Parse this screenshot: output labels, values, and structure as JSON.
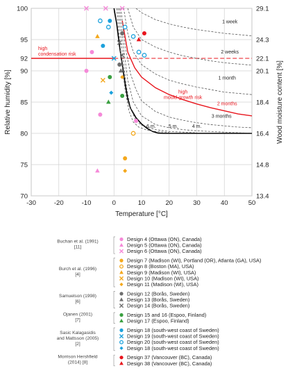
{
  "chart_data": {
    "type": "scatter",
    "xlabel": "Temperature [°C]",
    "ylabel": "Relative humidity [%]",
    "y2label": "Wood moisture content [%]",
    "xlim": [
      -30,
      50
    ],
    "ylim": [
      70,
      100
    ],
    "xticks": [
      -30,
      -20,
      -10,
      0,
      10,
      20,
      30,
      40,
      50
    ],
    "yticks": [
      70,
      75,
      80,
      85,
      90,
      95,
      100
    ],
    "y2ticks": [
      {
        "rh": 70,
        "label": "13.4"
      },
      {
        "rh": 75,
        "label": "14.8"
      },
      {
        "rh": 80,
        "label": "16.4"
      },
      {
        "rh": 85,
        "label": "18.4"
      },
      {
        "rh": 90,
        "label": "20.1"
      },
      {
        "rh": 92,
        "label": "22.1"
      },
      {
        "rh": 95,
        "label": "24.3"
      },
      {
        "rh": 100,
        "label": "29.1"
      }
    ],
    "y92_label": "92",
    "y2_92_label": "22.1",
    "condensation_line_rh": 92,
    "condensation_label": [
      "high",
      "condensation risk"
    ],
    "mould_label": [
      "high",
      "mould-growth risk"
    ],
    "colors": {
      "red": "#e8141c",
      "pink": "#f589d8",
      "orange": "#f4a81c",
      "gray": "#6e6e6e",
      "green": "#3aa040",
      "blue": "#1ba1dc"
    },
    "curves": [
      {
        "name": "2 months",
        "style": "red",
        "label": "2 months",
        "x": [
          3.0,
          5.0,
          7.5,
          10.0,
          15.0,
          20.0,
          25.0,
          30.0,
          35.0,
          40.0,
          45.0,
          50.0
        ],
        "y": [
          98.0,
          93.0,
          90.5,
          89.0,
          87.3,
          86.2,
          85.4,
          84.7,
          84.1,
          83.6,
          83.1,
          82.8
        ]
      },
      {
        "name": "limit",
        "style": "black",
        "x": [
          0.0,
          1.0,
          2.0,
          3.0,
          4.0,
          5.0,
          6.0,
          8.0,
          10.0,
          12.0,
          14.0,
          16.0,
          18.0,
          20.0,
          25.0,
          30.0,
          35.0,
          40.0,
          45.0,
          50.0
        ],
        "y": [
          100.0,
          97.5,
          94.0,
          91.0,
          88.0,
          85.5,
          84.0,
          82.5,
          81.5,
          80.8,
          80.3,
          80.05,
          80.0,
          80.0,
          80.0,
          80.0,
          80.0,
          80.0,
          80.0,
          80.0
        ]
      },
      {
        "name": "1 week",
        "style": "dashed",
        "label": "1 week",
        "x": [
          8.0,
          10.0,
          15.0,
          20.0,
          25.0,
          30.0,
          35.0,
          40.0,
          45.0,
          50.0
        ],
        "y": [
          100.0,
          99.3,
          98.2,
          97.5,
          97.0,
          96.6,
          96.3,
          96.0,
          95.8,
          95.6
        ]
      },
      {
        "name": "2 weeks",
        "style": "dashed",
        "label": "2 weeks",
        "x": [
          5.0,
          7.0,
          10.0,
          15.0,
          20.0,
          25.0,
          30.0,
          35.0,
          40.0,
          45.0,
          50.0
        ],
        "y": [
          100.0,
          97.0,
          95.0,
          93.8,
          93.0,
          92.4,
          92.0,
          91.6,
          91.3,
          91.1,
          90.9
        ]
      },
      {
        "name": "1 month",
        "style": "dashed",
        "label": "1 month",
        "x": [
          3.5,
          5.0,
          7.0,
          10.0,
          15.0,
          20.0,
          25.0,
          30.0,
          35.0,
          40.0,
          45.0,
          50.0
        ],
        "y": [
          100.0,
          96.0,
          93.0,
          91.0,
          89.5,
          88.5,
          87.9,
          87.4,
          87.0,
          86.6,
          86.4,
          86.2
        ]
      },
      {
        "name": "3 months",
        "style": "dashed",
        "label": "3 months",
        "x": [
          2.5,
          4.0,
          6.0,
          8.0,
          10.0,
          15.0,
          20.0,
          25.0,
          30.0,
          35.0,
          40.0,
          45.0,
          50.0
        ],
        "y": [
          100.0,
          94.0,
          89.5,
          87.0,
          85.2,
          83.5,
          82.6,
          82.1,
          81.7,
          81.4,
          81.2,
          81.0,
          80.9
        ]
      },
      {
        "name": "4 months",
        "style": "dashed",
        "label": "4 m.",
        "x": [
          2.0,
          3.5,
          5.0,
          7.0,
          10.0,
          15.0,
          20.0,
          25.0,
          30.0,
          35.0,
          40.0,
          45.0,
          50.0
        ],
        "y": [
          100.0,
          93.5,
          88.5,
          85.0,
          82.8,
          81.4,
          80.9,
          80.6,
          80.4,
          80.3,
          80.2,
          80.1,
          80.05
        ]
      },
      {
        "name": "5 months",
        "style": "dashed",
        "label": "5 m.",
        "x": [
          1.5,
          3.0,
          4.5,
          6.0,
          8.0,
          10.0,
          15.0,
          20.0,
          25.0,
          30.0
        ],
        "y": [
          100.0,
          93.0,
          87.5,
          84.0,
          82.0,
          81.3,
          80.6,
          80.3,
          80.2,
          80.1
        ]
      },
      {
        "name": "6 months",
        "style": "dashed",
        "label": "6 m.",
        "x": [
          1.0,
          2.5,
          4.0,
          5.5,
          7.0,
          9.0,
          12.0,
          15.0,
          20.0
        ],
        "y": [
          100.0,
          92.5,
          87.0,
          83.5,
          81.8,
          81.0,
          80.5,
          80.3,
          80.15
        ]
      }
    ],
    "series": [
      {
        "name": "Design 4 (Ottawa (ON), Canada)",
        "marker": "circle",
        "color": "#f589d8",
        "x": [
          -8.0,
          -10.0,
          -5.0,
          8.0
        ],
        "y": [
          93.0,
          90.0,
          83.0,
          82.0
        ]
      },
      {
        "name": "Design 5 (Ottawa (ON), Canada)",
        "marker": "triangle",
        "color": "#f589d8",
        "x": [
          -6.0
        ],
        "y": [
          74.0
        ]
      },
      {
        "name": "Design 6 (Ottawa (ON), Canada)",
        "marker": "cross",
        "color": "#f589d8",
        "x": [
          -10.0,
          -3.0,
          3.0
        ],
        "y": [
          100.0,
          100.0,
          100.0
        ]
      },
      {
        "name": "Design 7 (Madison (WI), Portland (OR), Atlanta (GA), USA)",
        "marker": "circle",
        "color": "#f4a81c",
        "x": [
          4.0
        ],
        "y": [
          76.0
        ]
      },
      {
        "name": "Design 8 (Boston (MA), USA)",
        "marker": "open-circle",
        "color": "#f4a81c",
        "x": [
          7.0
        ],
        "y": [
          80.0
        ]
      },
      {
        "name": "Design 9 (Madison (WI), USA)",
        "marker": "triangle",
        "color": "#f4a81c",
        "x": [
          -6.0
        ],
        "y": [
          95.5
        ]
      },
      {
        "name": "Design 10 (Madison (WI), USA)",
        "marker": "cross",
        "color": "#f4a81c",
        "x": [
          -4.0
        ],
        "y": [
          88.5
        ]
      },
      {
        "name": "Design 11 (Madison (WI), USA)",
        "marker": "diamond",
        "color": "#f4a81c",
        "x": [
          4.0,
          3.0
        ],
        "y": [
          74.0,
          89.0
        ]
      },
      {
        "name": "Design 12 (Borås, Sweden)",
        "marker": "circle",
        "color": "#6e6e6e",
        "x": [
          2.0,
          3.0
        ],
        "y": [
          91.0,
          96.0
        ]
      },
      {
        "name": "Design 13 (Borås, Sweden)",
        "marker": "triangle",
        "color": "#6e6e6e",
        "x": [
          2.5
        ],
        "y": [
          90.0
        ]
      },
      {
        "name": "Design 14 (Borås, Sweden)",
        "marker": "cross",
        "color": "#6e6e6e",
        "x": [
          3.0,
          2.0
        ],
        "y": [
          92.5,
          94.5
        ]
      },
      {
        "name": "Design 15 and 16 (Espoo, Finland)",
        "marker": "circle",
        "color": "#3aa040",
        "x": [
          -1.5,
          3.0
        ],
        "y": [
          89.0,
          86.0
        ]
      },
      {
        "name": "Design 17 (Espoo, Finland)",
        "marker": "triangle",
        "color": "#3aa040",
        "x": [
          -2.0
        ],
        "y": [
          85.0
        ]
      },
      {
        "name": "Design 18 (south-west coast of Sweden)",
        "marker": "circle",
        "color": "#1ba1dc",
        "x": [
          -4.0,
          -1.5
        ],
        "y": [
          94.0,
          98.0
        ]
      },
      {
        "name": "Design 19 (south-west coast of Sweden)",
        "marker": "cross",
        "color": "#1ba1dc",
        "x": [
          0.0
        ],
        "y": [
          92.0
        ]
      },
      {
        "name": "Design 20 (south-west coast of Sweden)",
        "marker": "open-circle",
        "color": "#1ba1dc",
        "x": [
          -5.0,
          -2.0,
          4.0,
          7.0,
          9.0,
          11.0
        ],
        "y": [
          98.0,
          97.0,
          97.0,
          95.5,
          93.0,
          92.5
        ]
      },
      {
        "name": "Design 18 (south-west coast of Sweden)",
        "marker": "diamond",
        "color": "#1ba1dc",
        "x": [
          -1.0
        ],
        "y": [
          86.5
        ]
      },
      {
        "name": "Design 37 (Vancouver (BC), Canada)",
        "marker": "circle",
        "color": "#e8141c",
        "x": [
          11.0
        ],
        "y": [
          96.0
        ]
      },
      {
        "name": "Design 38 (Vancouver (BC), Canada)",
        "marker": "triangle",
        "color": "#e8141c",
        "x": [
          9.0
        ],
        "y": [
          95.0
        ]
      }
    ],
    "legend_groups": [
      {
        "source": [
          "Buchan et al. (1991)",
          "[11]"
        ],
        "items": [
          0,
          1,
          2
        ]
      },
      {
        "source": [
          "Burch et al. (1996)",
          "[4]"
        ],
        "items": [
          3,
          4,
          5,
          6,
          7
        ]
      },
      {
        "source": [
          "Samuelson (1998)",
          "[6]"
        ],
        "items": [
          8,
          9,
          10
        ]
      },
      {
        "source": [
          "Ojanen (2001)",
          "[7]"
        ],
        "items": [
          11,
          12
        ]
      },
      {
        "source": [
          "Sasic Kalagasidis",
          "and Mattsson (2005)",
          "[2]"
        ],
        "items": [
          13,
          14,
          15,
          16
        ]
      },
      {
        "source": [
          "Morrison Hershfield",
          "(2014) [8]"
        ],
        "items": [
          17,
          18
        ]
      }
    ]
  }
}
